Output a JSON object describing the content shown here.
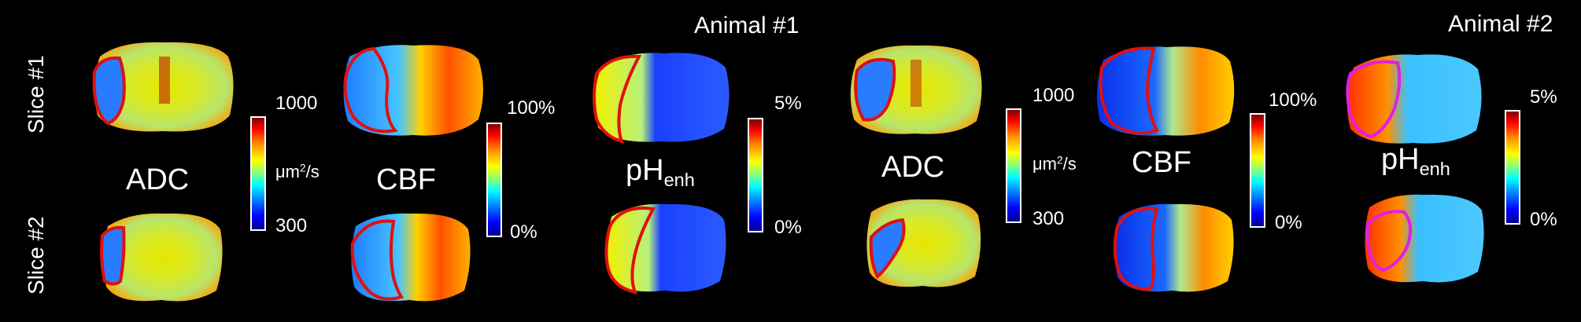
{
  "animal_labels": [
    "Animal #1",
    "Animal #2"
  ],
  "slice_labels": [
    "Slice #1",
    "Slice #2"
  ],
  "map_titles": {
    "adc": "ADC",
    "cbf": "CBF",
    "ph_main": "pH",
    "ph_sub": "enh"
  },
  "colorbars": {
    "adc": {
      "max": "1000",
      "min": "300",
      "unit_main": "μm",
      "unit_sup": "2",
      "unit_tail": "/s"
    },
    "cbf": {
      "max": "100%",
      "min": "0%"
    },
    "ph": {
      "max": "5%",
      "min": "0%"
    }
  },
  "colors": {
    "background": "#000000",
    "lesion_outline_red": "#e01010",
    "lesion_outline_magenta": "#e020e0"
  }
}
